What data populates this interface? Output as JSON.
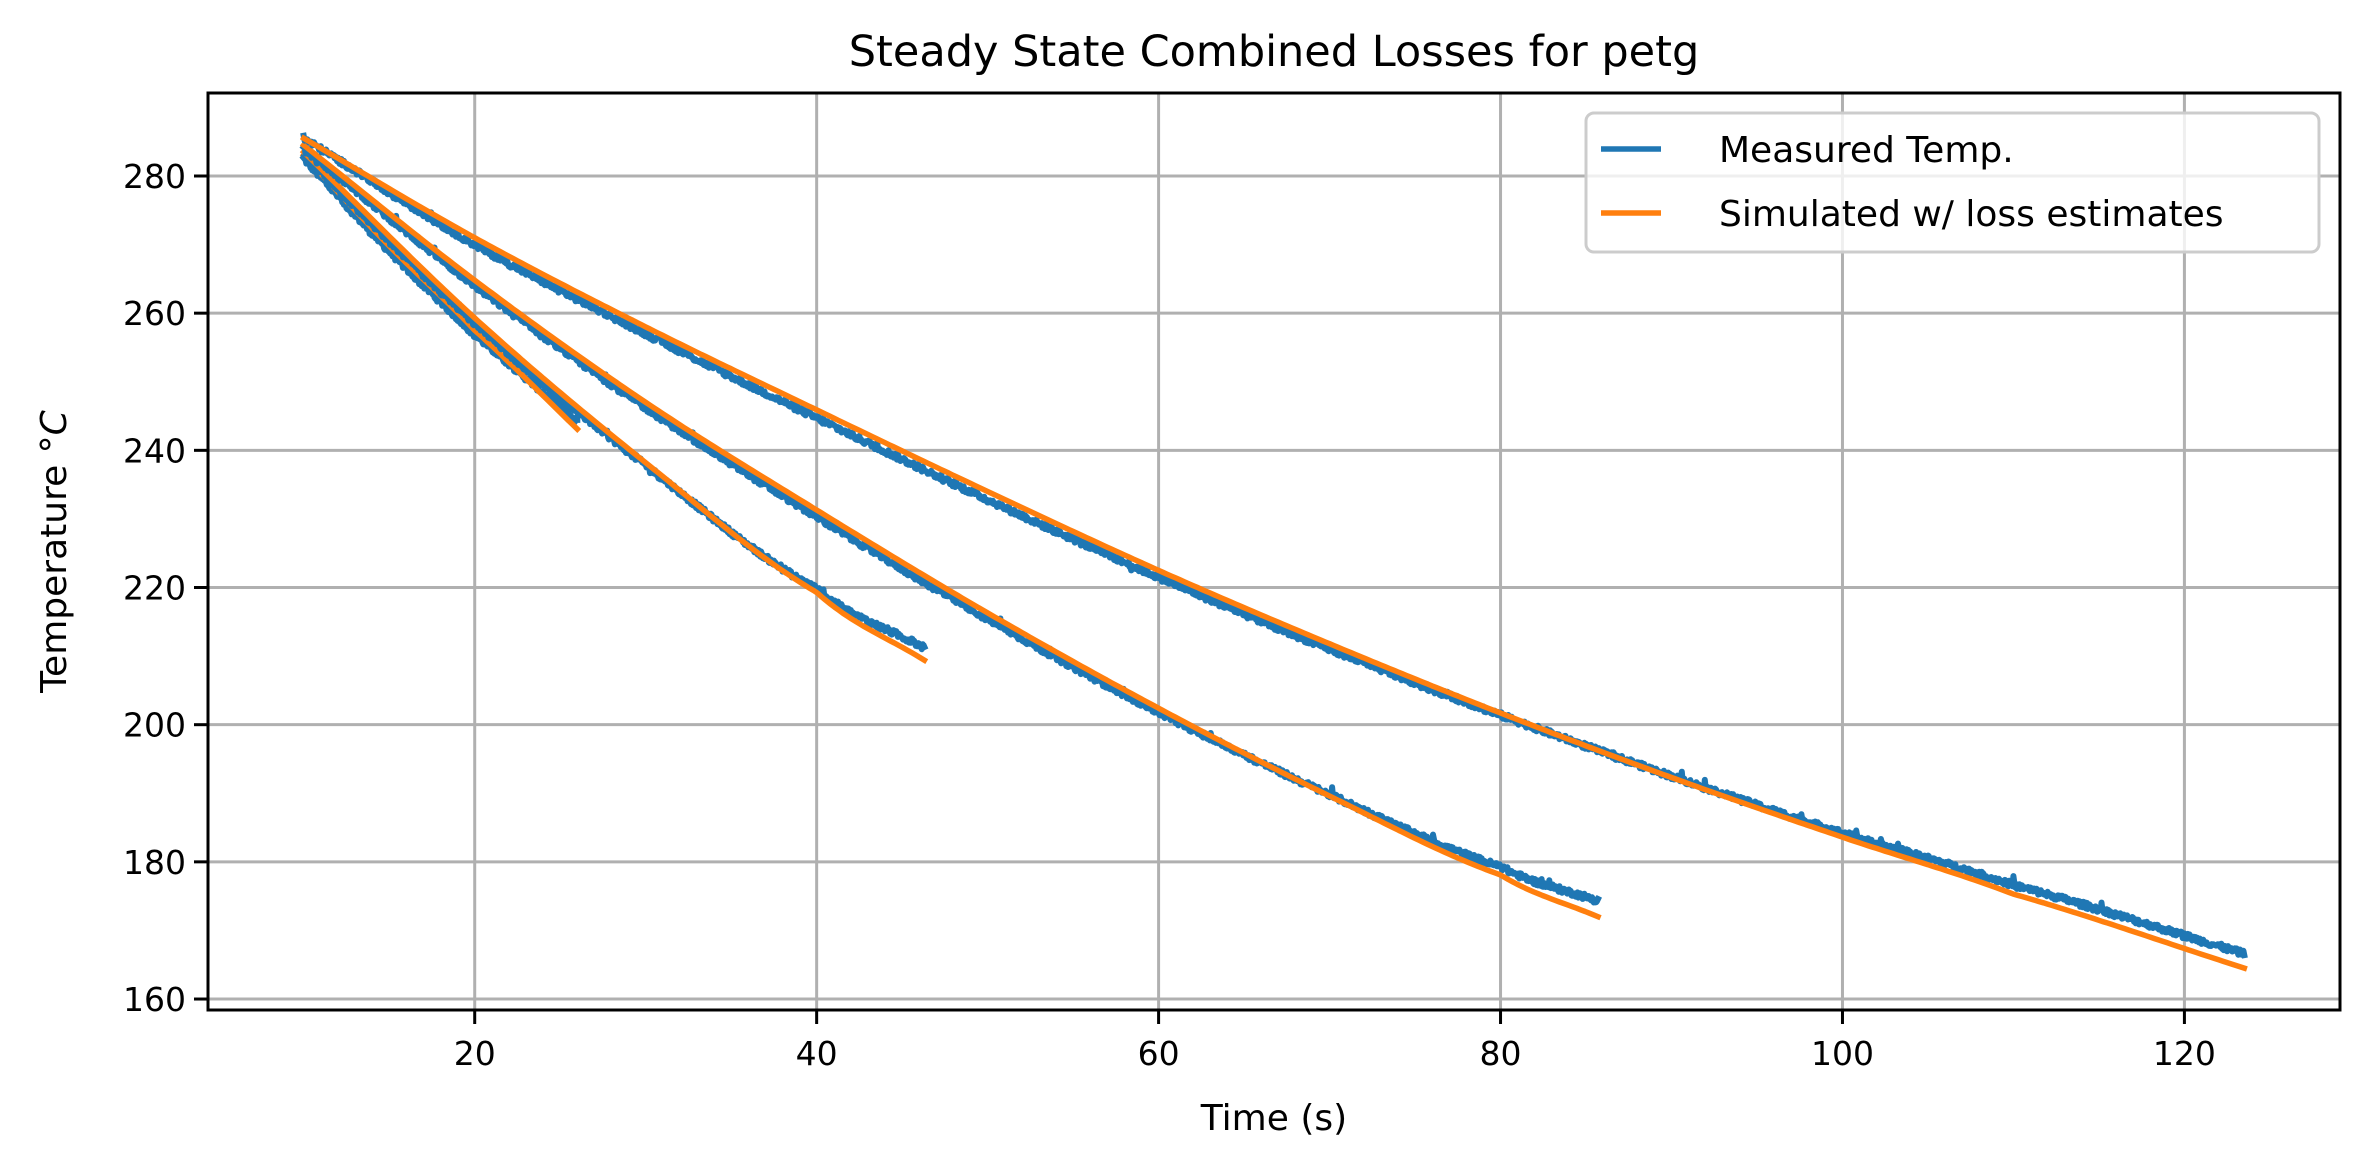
{
  "chart_data": {
    "type": "line",
    "title": "Steady State Combined Losses for petg",
    "xlabel": "Time (s)",
    "ylabel": "Temperature",
    "ylabel_unit": "°C",
    "xlim": [
      4.4,
      129.1
    ],
    "ylim": [
      158.4,
      292.1
    ],
    "xticks": [
      20,
      40,
      60,
      80,
      100,
      120
    ],
    "yticks": [
      160,
      180,
      200,
      220,
      240,
      260,
      280
    ],
    "grid": true,
    "legend_position": "top-right",
    "legend": [
      {
        "label": "Measured Temp.",
        "color": "#1f77b4"
      },
      {
        "label": "Simulated w/ loss estimates",
        "color": "#ff7f0e"
      }
    ],
    "series": [
      {
        "name": "Measured Temp.",
        "run": 1,
        "color": "#1f77b4",
        "noisy": true,
        "x": [
          10,
          15,
          20,
          26
        ],
        "y": [
          282.5,
          269.0,
          256.8,
          244.2
        ]
      },
      {
        "name": "Simulated w/ loss estimates",
        "run": 1,
        "color": "#ff7f0e",
        "noisy": false,
        "x": [
          10,
          15,
          20,
          26
        ],
        "y": [
          283.0,
          269.8,
          257.5,
          243.1
        ]
      },
      {
        "name": "Measured Temp.",
        "run": 2,
        "color": "#1f77b4",
        "noisy": true,
        "x": [
          10,
          20,
          30,
          40,
          46.3
        ],
        "y": [
          283.0,
          258.5,
          237.8,
          219.8,
          211.2
        ]
      },
      {
        "name": "Simulated w/ loss estimates",
        "run": 2,
        "color": "#ff7f0e",
        "noisy": false,
        "x": [
          10,
          20,
          30,
          40,
          46.3
        ],
        "y": [
          283.5,
          259.3,
          238.2,
          219.3,
          209.4
        ]
      },
      {
        "name": "Measured Temp.",
        "run": 3,
        "color": "#1f77b4",
        "noisy": true,
        "x": [
          10,
          20,
          30,
          40,
          50,
          60,
          70,
          80,
          85.7
        ],
        "y": [
          284.0,
          264.0,
          246.2,
          230.3,
          215.4,
          201.8,
          189.8,
          179.3,
          174.3
        ]
      },
      {
        "name": "Simulated w/ loss estimates",
        "run": 3,
        "color": "#ff7f0e",
        "noisy": false,
        "x": [
          10,
          20,
          30,
          40,
          50,
          60,
          70,
          80,
          85.7
        ],
        "y": [
          284.5,
          264.8,
          247.0,
          231.3,
          216.3,
          202.4,
          189.6,
          178.1,
          172.0
        ]
      },
      {
        "name": "Measured Temp.",
        "run": 4,
        "color": "#1f77b4",
        "noisy": true,
        "x": [
          10,
          20,
          30,
          40,
          50,
          60,
          70,
          80,
          90,
          100,
          110,
          123.5
        ],
        "y": [
          285.5,
          270.0,
          257.0,
          244.7,
          232.8,
          221.5,
          211.0,
          201.4,
          192.5,
          184.2,
          176.6,
          166.6
        ]
      },
      {
        "name": "Simulated w/ loss estimates",
        "run": 4,
        "color": "#ff7f0e",
        "noisy": false,
        "x": [
          10,
          20,
          30,
          40,
          50,
          60,
          70,
          80,
          90,
          100,
          110,
          123.5
        ],
        "y": [
          285.5,
          271.0,
          258.0,
          245.9,
          234.0,
          222.5,
          211.8,
          201.7,
          192.3,
          183.6,
          175.3,
          164.5
        ]
      }
    ]
  }
}
